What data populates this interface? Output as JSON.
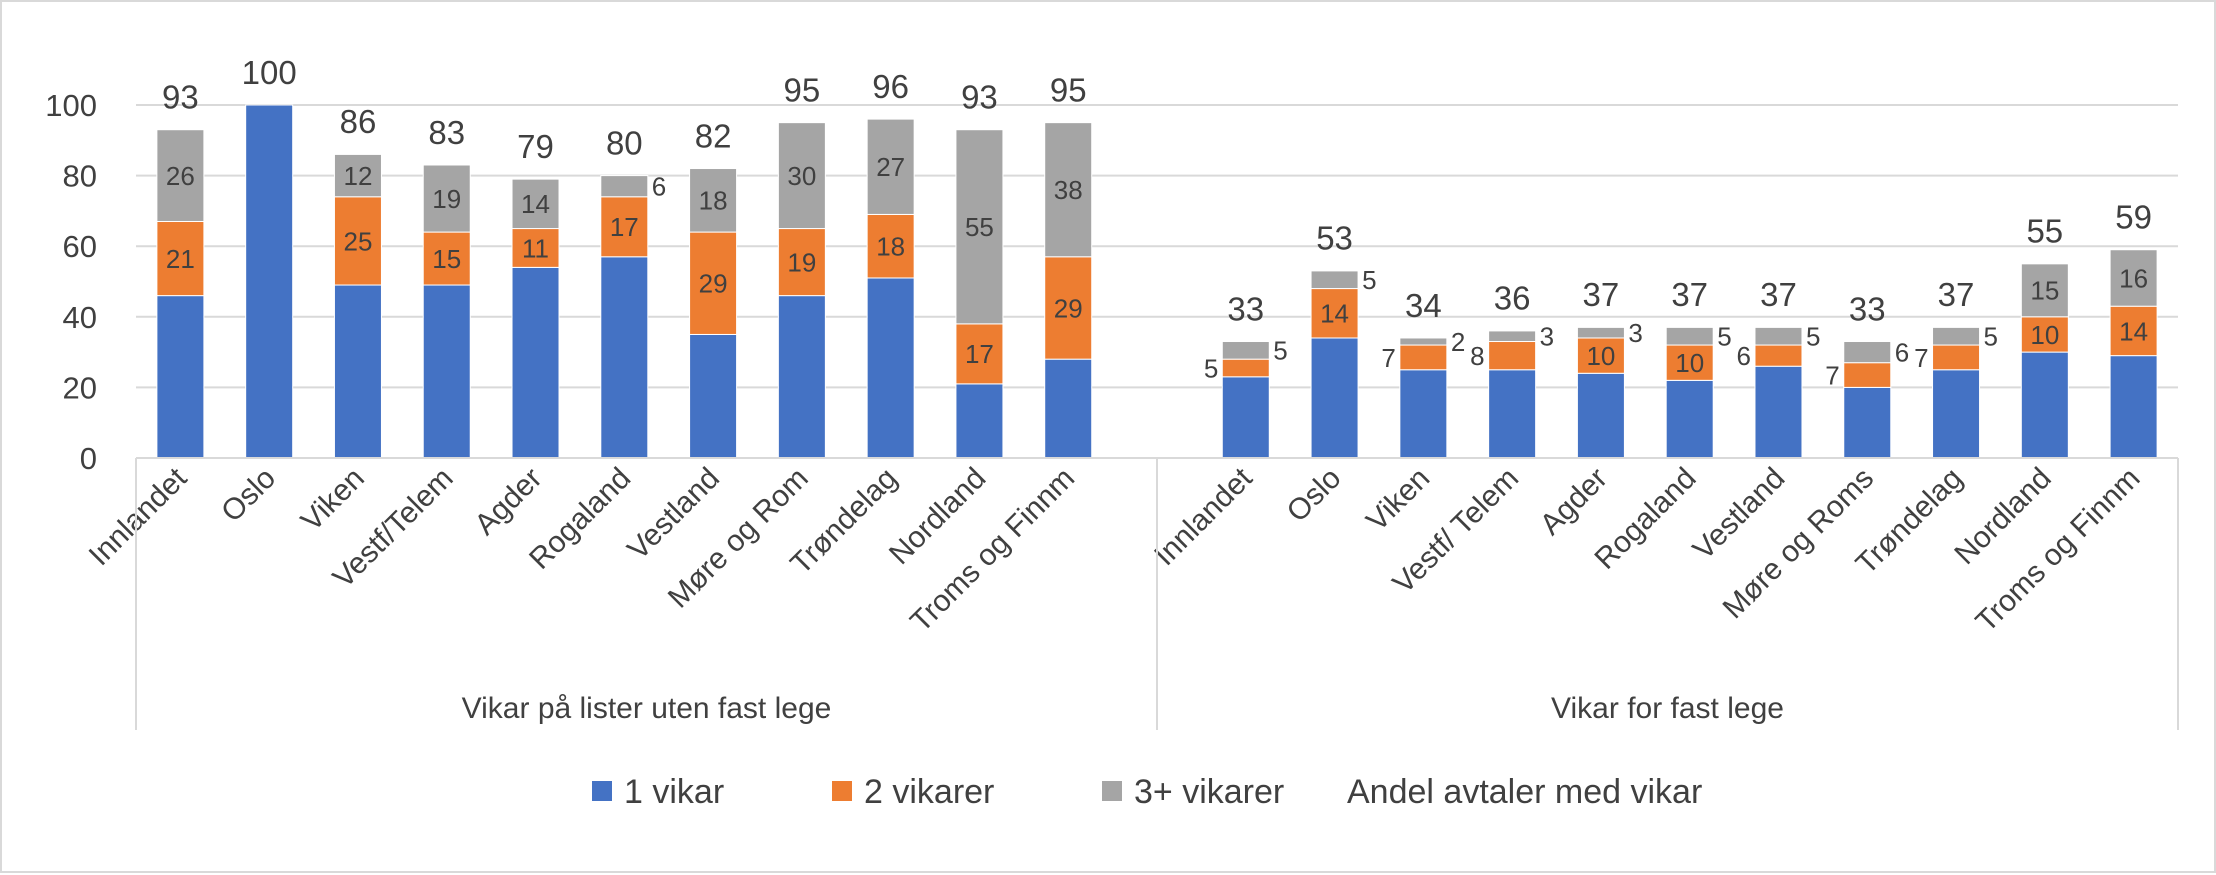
{
  "chart_data": {
    "type": "bar",
    "stacked": true,
    "ylim": [
      0,
      100
    ],
    "yticks": [
      0,
      20,
      40,
      60,
      80,
      100
    ],
    "grid": true,
    "legend_position": "bottom",
    "groups": [
      {
        "label": "Vikar på lister uten fast lege",
        "categories": [
          "Innlandet",
          "Oslo",
          "Viken",
          "Vestf/Telem",
          "Agder",
          "Rogaland",
          "Vestland",
          "Møre og Rom",
          "Trøndelag",
          "Nordland",
          "Troms og Finnm"
        ],
        "series": [
          {
            "name": "1 vikar",
            "values": [
              46,
              100,
              49,
              49,
              54,
              57,
              35,
              46,
              51,
              21,
              28
            ]
          },
          {
            "name": "2 vikarer",
            "values": [
              21,
              null,
              25,
              15,
              11,
              17,
              29,
              19,
              18,
              17,
              29
            ]
          },
          {
            "name": "3+ vikarer",
            "values": [
              26,
              null,
              12,
              19,
              14,
              6,
              18,
              30,
              27,
              55,
              38
            ]
          }
        ],
        "totals": [
          93,
          100,
          86,
          83,
          79,
          80,
          82,
          95,
          96,
          93,
          95
        ]
      },
      {
        "label": "Vikar for fast lege",
        "categories": [
          "Innlandet",
          "Oslo",
          "Viken",
          "Vestf/ Telem",
          "Agder",
          "Rogaland",
          "Vestland",
          "Møre og Roms",
          "Trøndelag",
          "Nordland",
          "Troms og Finnm"
        ],
        "series": [
          {
            "name": "1 vikar",
            "values": [
              23,
              34,
              25,
              25,
              24,
              22,
              26,
              20,
              25,
              30,
              29
            ]
          },
          {
            "name": "2 vikarer",
            "values": [
              5,
              14,
              7,
              8,
              10,
              10,
              6,
              7,
              7,
              10,
              14
            ]
          },
          {
            "name": "3+ vikarer",
            "values": [
              5,
              5,
              2,
              3,
              3,
              5,
              5,
              6,
              5,
              15,
              16
            ]
          }
        ],
        "totals": [
          33,
          53,
          34,
          36,
          37,
          37,
          37,
          33,
          37,
          55,
          59
        ]
      }
    ],
    "legend": [
      "1 vikar",
      "2 vikarer",
      "3+ vikarer",
      "Andel avtaler med vikar"
    ],
    "colors": {
      "1 vikar": "#4472c4",
      "2 vikarer": "#ed7d31",
      "3+ vikarer": "#a5a5a5",
      "Andel avtaler med vikar": "none"
    }
  }
}
